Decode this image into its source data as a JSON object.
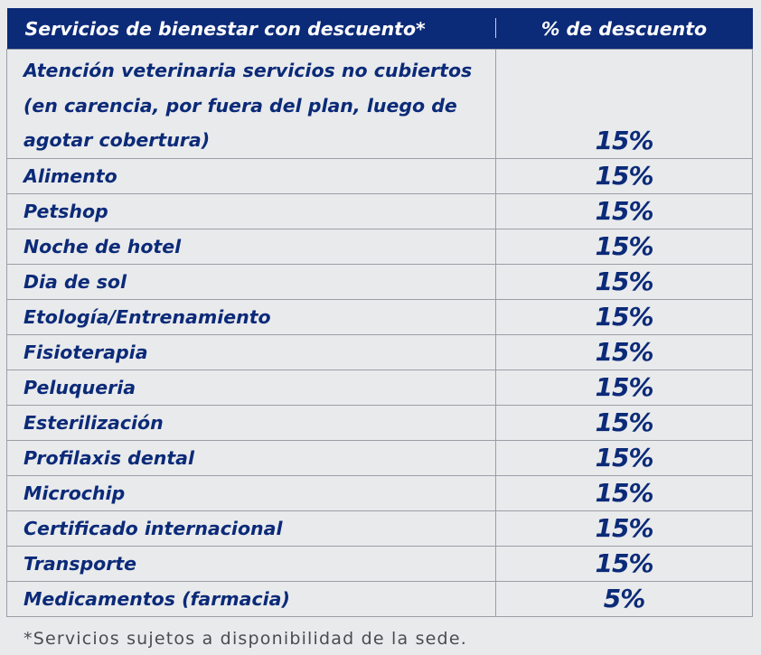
{
  "table": {
    "headers": {
      "service": "Servicios de bienestar con descuento*",
      "discount": "% de descuento"
    },
    "rows": [
      {
        "service": "Atención veterinaria servicios no cubiertos (en carencia, por fuera del plan, luego de agotar cobertura)",
        "discount": "15%"
      },
      {
        "service": "Alimento",
        "discount": "15%"
      },
      {
        "service": "Petshop",
        "discount": "15%"
      },
      {
        "service": "Noche de hotel",
        "discount": "15%"
      },
      {
        "service": "Dia de sol",
        "discount": "15%"
      },
      {
        "service": "Etología/Entrenamiento",
        "discount": "15%"
      },
      {
        "service": "Fisioterapia",
        "discount": "15%"
      },
      {
        "service": "Peluqueria",
        "discount": "15%"
      },
      {
        "service": "Esterilización",
        "discount": "15%"
      },
      {
        "service": "Profilaxis dental",
        "discount": "15%"
      },
      {
        "service": "Microchip",
        "discount": "15%"
      },
      {
        "service": "Certificado internacional",
        "discount": "15%"
      },
      {
        "service": "Transporte",
        "discount": "15%"
      },
      {
        "service": "Medicamentos (farmacia)",
        "discount": "5%"
      }
    ]
  },
  "footnote": "*Servicios sujetos a disponibilidad de la sede.",
  "colors": {
    "header_bg": "#0b2a78",
    "text_primary": "#0b2a78",
    "page_bg": "#e9eaec",
    "border": "#9a9ea6"
  }
}
